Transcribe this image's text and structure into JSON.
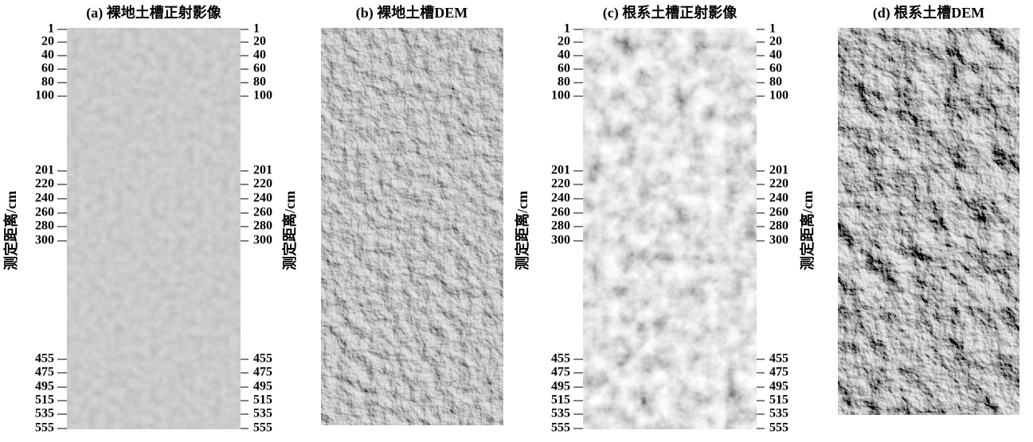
{
  "panels": [
    {
      "title": "(a) 裸地土槽正射影像",
      "y_label": "测定距离/cm"
    },
    {
      "title": "(b) 裸地土槽DEM",
      "y_label": "测定距离/cm"
    },
    {
      "title": "(c) 根系土槽正射影像",
      "y_label": "测定距离/cm"
    },
    {
      "title": "(d) 根系土槽DEM",
      "y_label": "测定距离/cm"
    }
  ],
  "ticks": [
    1,
    20,
    40,
    60,
    80,
    100,
    201,
    220,
    240,
    260,
    280,
    300,
    455,
    475,
    495,
    515,
    535,
    555
  ]
}
